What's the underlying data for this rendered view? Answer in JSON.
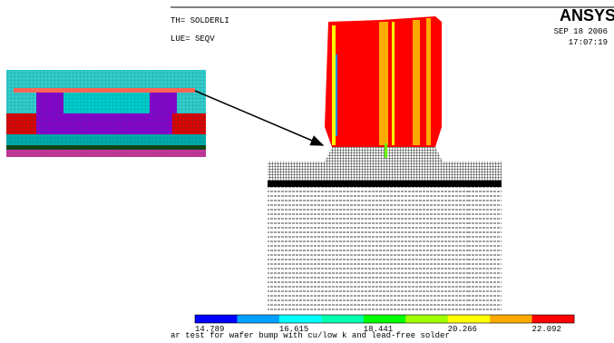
{
  "header": {
    "line1": "TH= SOLDERLI",
    "line2": "LUE= SEQV"
  },
  "logo": "ANSYS",
  "date": "SEP 18 2006",
  "time": "17:07:19",
  "legend": {
    "colors": [
      "#0000ff",
      "#00a0ff",
      "#00ffff",
      "#00ffb0",
      "#00ff00",
      "#a0ff00",
      "#ffff00",
      "#ffaa00",
      "#ff0000"
    ],
    "labels": [
      "14.789",
      "16.615",
      "18.441",
      "20.266",
      "22.092"
    ]
  },
  "caption": "ar test for wafer bump with cu/low k and lead-free solder"
}
